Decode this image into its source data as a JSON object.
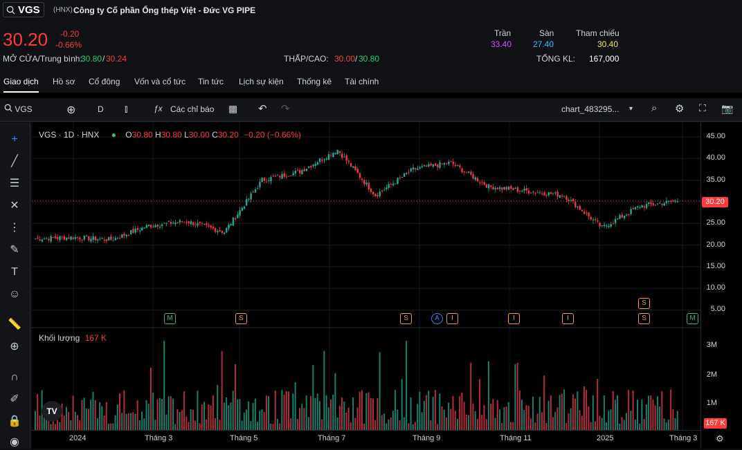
{
  "header": {
    "ticker": "VGS",
    "exchange": "(HNX)",
    "company": "Công ty Cổ phần Ống thép Việt - Đức VG PIPE",
    "price": "30.20",
    "change": "-0.20",
    "change_pct": "-0.66%",
    "open_avg_label": "MỞ CỬA/Trung bình:",
    "open": "30.80",
    "avg": "30.24",
    "low_high_label": "THẤP/CAO:",
    "low": "30.00",
    "high": "30.80",
    "ceiling_label": "Trần",
    "ceiling": "33.40",
    "floor_label": "Sàn",
    "floor": "27.40",
    "ref_label": "Tham chiếu",
    "ref": "30.40",
    "vol_label": "TỔNG KL:",
    "vol": "167,000"
  },
  "tabs": [
    "Giao dịch",
    "Hồ sơ",
    "Cổ đông",
    "Vốn và cổ tức",
    "Tin tức",
    "Lịch sự kiện",
    "Thống kê",
    "Tài chính"
  ],
  "toolbar": {
    "symbol": "VGS",
    "interval": "D",
    "indicators": "Các chỉ báo",
    "layout_name": "chart_483295..."
  },
  "legend": {
    "title": "VGS · 1D · HNX",
    "o_label": "O",
    "o": "30.80",
    "h_label": "H",
    "h": "30.80",
    "l_label": "L",
    "l": "30.00",
    "c_label": "C",
    "c": "30.20",
    "chg": "−0.20 (−0.66%)"
  },
  "volume_pane": {
    "label": "Khối lượng",
    "value": "167 K"
  },
  "price_tag": "30.20",
  "vol_tag": "167 K",
  "events": [
    {
      "letter": "M",
      "type": "g"
    },
    {
      "letter": "S",
      "type": "o"
    },
    {
      "letter": "S",
      "type": "o"
    },
    {
      "letter": "A",
      "type": "b"
    },
    {
      "letter": "I",
      "type": "o"
    },
    {
      "letter": "I",
      "type": "o"
    },
    {
      "letter": "I",
      "type": "o"
    },
    {
      "letter": "S",
      "type": "o"
    },
    {
      "letter": "S",
      "type": "o"
    },
    {
      "letter": "M",
      "type": "g"
    }
  ],
  "chart_data": {
    "type": "candlestick",
    "price_axis": [
      "45.00",
      "40.00",
      "35.00",
      "30.00",
      "25.00",
      "20.00",
      "15.00",
      "10.00",
      "5.00"
    ],
    "volume_axis": [
      "3M",
      "2M",
      "1M"
    ],
    "x_labels": [
      "2024",
      "Tháng 3",
      "Tháng 5",
      "Tháng 7",
      "Tháng 9",
      "Tháng 11",
      "2025",
      "Tháng 3"
    ],
    "price_path": [
      [
        "2024-01",
        21.5
      ],
      [
        "2024-02",
        21.8
      ],
      [
        "2024-03",
        21.2
      ],
      [
        "2024-04",
        24.5
      ],
      [
        "2024-05",
        25.5
      ],
      [
        "2024-05b",
        23.0
      ],
      [
        "2024-06",
        35.0
      ],
      [
        "2024-07",
        37.0
      ],
      [
        "2024-07b",
        42.0
      ],
      [
        "2024-08",
        31.5
      ],
      [
        "2024-09",
        37.5
      ],
      [
        "2024-10",
        39.0
      ],
      [
        "2024-11",
        33.5
      ],
      [
        "2024-12",
        32.5
      ],
      [
        "2025-01",
        31.5
      ],
      [
        "2025-02",
        24.0
      ],
      [
        "2025-03",
        29.0
      ],
      [
        "2025-03b",
        30.2
      ]
    ],
    "colors": {
      "up": "#22ab94",
      "down": "#f23645"
    }
  }
}
